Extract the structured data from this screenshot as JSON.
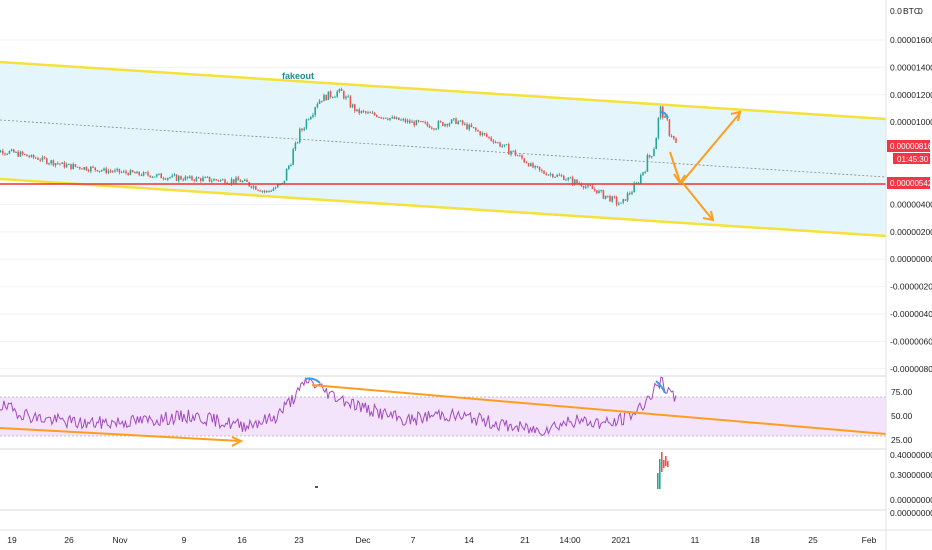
{
  "chart_data": {
    "type": "candlestick",
    "currency": "BTC",
    "annotation": "fakeout",
    "price_axis": [
      "0.00001600",
      "0.00001400",
      "0.00001200",
      "0.00001000",
      "0.00000816",
      "0.00000542",
      "0.00000400",
      "0.00000200",
      "0.00000000",
      "-0.00000200",
      "-0.00000400",
      "-0.00000600",
      "-0.00000800"
    ],
    "top_tick_partial": "0.0",
    "current_price": "0.00000816",
    "countdown": "01:45:30",
    "horizontal_level": "0.00000542",
    "rsi_axis": [
      "75.00",
      "50.00",
      "25.00"
    ],
    "volume_axis": [
      "0.40000000",
      "0.30000000",
      "0.00000000",
      "0.00000000"
    ],
    "x_labels": [
      "19",
      "26",
      "Nov",
      "9",
      "16",
      "23",
      "Dec",
      "7",
      "14",
      "21",
      "14:00",
      "2021",
      "11",
      "18",
      "25",
      "Feb"
    ],
    "price_series": [
      [
        "Oct 16",
        8e-06
      ],
      [
        "Oct 19",
        7.8e-06
      ],
      [
        "Oct 26",
        6.8e-06
      ],
      [
        "Nov 2",
        6.3e-06
      ],
      [
        "Nov 9",
        5.9e-06
      ],
      [
        "Nov 16",
        5.7e-06
      ],
      [
        "Nov 19",
        4.9e-06
      ],
      [
        "Nov 21",
        5.5e-06
      ],
      [
        "Nov 23",
        9e-06
      ],
      [
        "Nov 25",
        1.15e-05
      ],
      [
        "Nov 28",
        1.23e-05
      ],
      [
        "Nov 30",
        1.08e-05
      ],
      [
        "Dec 4",
        1.03e-05
      ],
      [
        "Dec 9",
        9.7e-06
      ],
      [
        "Dec 12",
        1.01e-05
      ],
      [
        "Dec 15",
        9.2e-06
      ],
      [
        "Dec 19",
        7.8e-06
      ],
      [
        "Dec 22",
        6.4e-06
      ],
      [
        "Dec 25",
        6e-06
      ],
      [
        "Dec 29",
        5e-06
      ],
      [
        "Jan 1",
        4e-06
      ],
      [
        "Jan 3",
        5.5e-06
      ],
      [
        "Jan 5",
        8e-06
      ],
      [
        "Jan 6",
        1.1e-05
      ],
      [
        "Jan 7",
        9.5e-06
      ],
      [
        "Jan 8",
        8.2e-06
      ]
    ],
    "rsi_series": [
      [
        "Oct 16",
        65
      ],
      [
        "Oct 22",
        48
      ],
      [
        "Oct 28",
        42
      ],
      [
        "Nov 4",
        45
      ],
      [
        "Nov 10",
        50
      ],
      [
        "Nov 16",
        40
      ],
      [
        "Nov 20",
        48
      ],
      [
        "Nov 23",
        75
      ],
      [
        "Nov 24",
        88
      ],
      [
        "Nov 27",
        72
      ],
      [
        "Dec 1",
        58
      ],
      [
        "Dec 6",
        45
      ],
      [
        "Dec 10",
        52
      ],
      [
        "Dec 14",
        48
      ],
      [
        "Dec 18",
        40
      ],
      [
        "Dec 22",
        35
      ],
      [
        "Dec 26",
        45
      ],
      [
        "Dec 31",
        42
      ],
      [
        "Jan 3",
        55
      ],
      [
        "Jan 5",
        75
      ],
      [
        "Jan 6",
        85
      ],
      [
        "Jan 8",
        64
      ]
    ],
    "colors": {
      "channel_line": "#f5e13a",
      "channel_fill": "#dff4fa",
      "support_line": "#f23030",
      "projection_arrows": "#ff9d1e",
      "rsi_line": "#a24bbf",
      "rsi_band": "#f3e4fb",
      "rsi_trendline": "#ff9d1e",
      "divergence_marks": "#3d9ae8",
      "price_tag": "#f23645",
      "candle_up": "#26a69a",
      "candle_down": "#ef5350"
    }
  }
}
